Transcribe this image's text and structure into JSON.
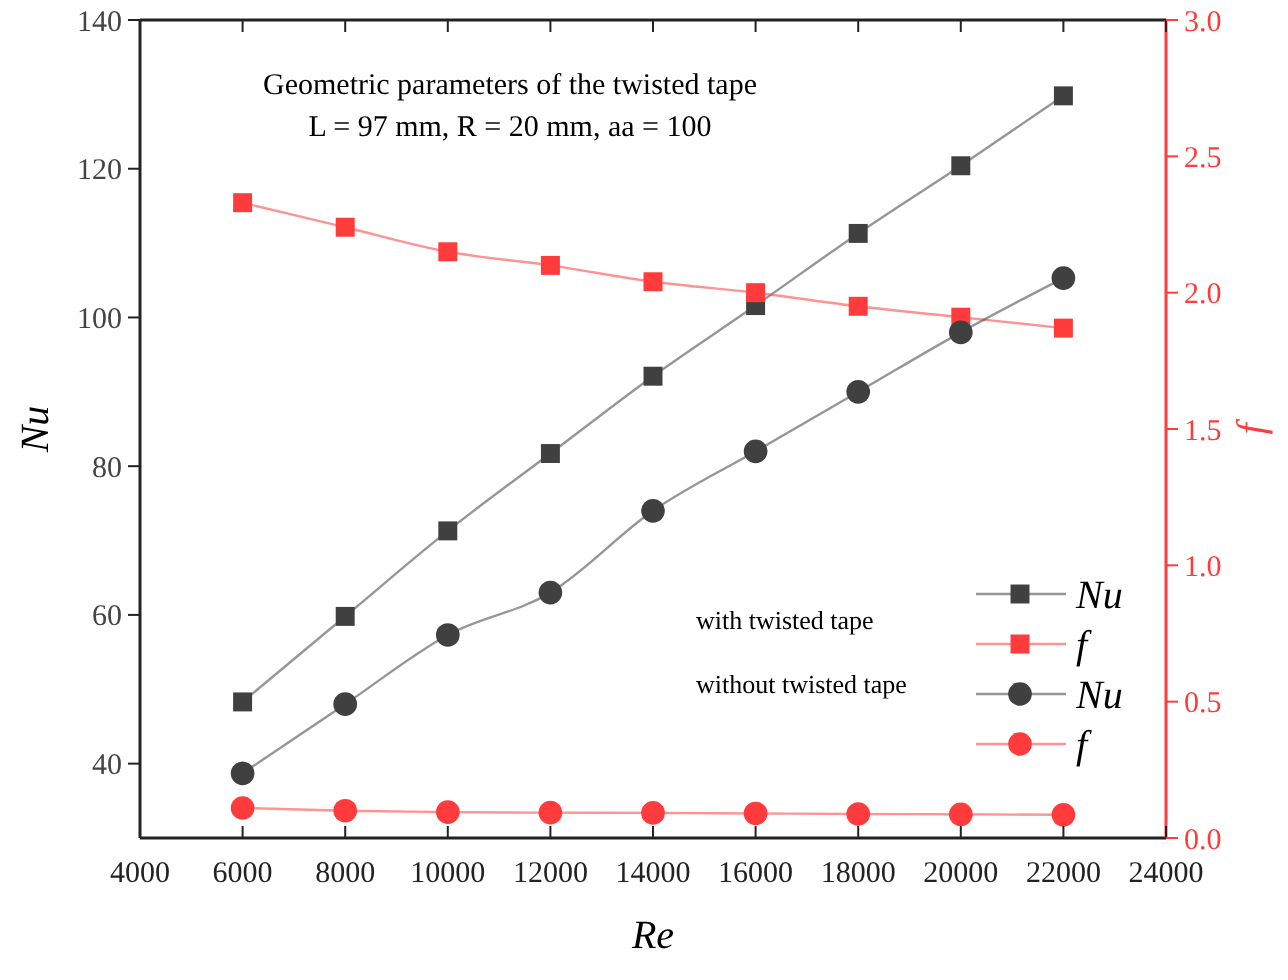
{
  "chart_data": {
    "type": "line",
    "xlabel": "Re",
    "ylabel": "Nu",
    "y2label": "f",
    "x": [
      6000,
      8000,
      10000,
      12000,
      14000,
      16000,
      18000,
      20000,
      22000
    ],
    "xlim": [
      4000,
      24000
    ],
    "xticks": [
      4000,
      6000,
      8000,
      10000,
      12000,
      14000,
      16000,
      18000,
      20000,
      22000,
      24000
    ],
    "ylim": [
      30,
      140
    ],
    "yticks": [
      40,
      60,
      80,
      100,
      120,
      140
    ],
    "y2lim": [
      0,
      3
    ],
    "y2ticks": [
      {
        "value": 0,
        "label": "0.0"
      },
      {
        "value": 0.5,
        "label": "0.5"
      },
      {
        "value": 1,
        "label": "1.0"
      },
      {
        "value": 1.5,
        "label": "1.5"
      },
      {
        "value": 2,
        "label": "2.0"
      },
      {
        "value": 2.5,
        "label": "2.5"
      },
      {
        "value": 3,
        "label": "3.0"
      }
    ],
    "grid": false,
    "legend": "bottom right",
    "line_style": "solid",
    "series": [
      {
        "name": "Nu",
        "color": "#404040",
        "marker": "square",
        "values": [
          48.3,
          59.8,
          71.3,
          81.7,
          92.1,
          101.6,
          111.3,
          120.4,
          129.8
        ]
      },
      {
        "name": "f",
        "color": "#ff3b3b",
        "marker": "square",
        "axis": "y2",
        "values": [
          2.33,
          2.24,
          2.15,
          2.1,
          2.04,
          2.0,
          1.95,
          1.91,
          1.87
        ]
      },
      {
        "name": "Nu",
        "color": "#404040",
        "marker": "circle",
        "values": [
          38.7,
          48.0,
          57.3,
          63.0,
          74.0,
          82.0,
          90.0,
          98.0,
          105.3
        ]
      },
      {
        "name": "f",
        "color": "#ff3b3b",
        "marker": "circle",
        "axis": "y2",
        "values": [
          0.11,
          0.1,
          0.095,
          0.093,
          0.092,
          0.09,
          0.088,
          0.087,
          0.085
        ]
      }
    ],
    "annotations": [
      "Geometric parameters of the twisted tape",
      "L = 97 mm, R = 20 mm, aa = 100",
      "with twisted tape",
      "without twisted tape"
    ]
  }
}
